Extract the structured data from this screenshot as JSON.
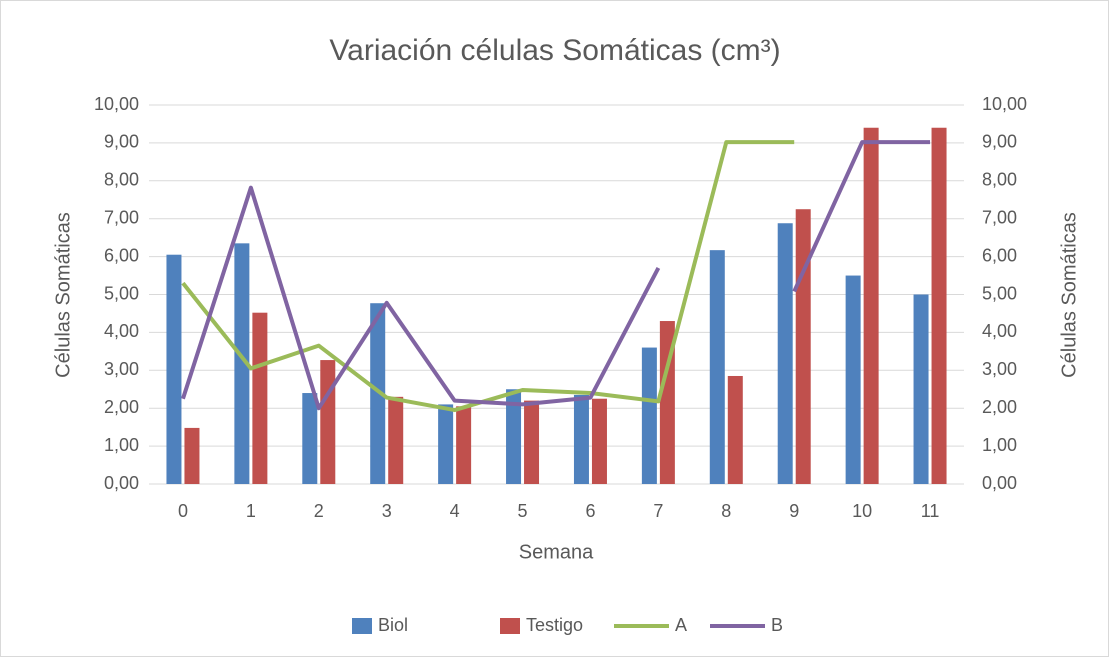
{
  "chart_data": {
    "type": "bar",
    "title": "Variación células Somáticas (cm³)",
    "x_label": "Semana",
    "y_label": "Células Somáticas",
    "y2_label": "Células Somáticas",
    "categories": [
      "0",
      "1",
      "2",
      "3",
      "4",
      "5",
      "6",
      "7",
      "8",
      "9",
      "10",
      "11"
    ],
    "series": [
      {
        "name": "Biol",
        "type": "bar",
        "color": "#4f81bd",
        "values": [
          6.05,
          6.35,
          2.4,
          4.77,
          2.1,
          2.5,
          2.35,
          3.6,
          6.17,
          6.88,
          5.5,
          5.0
        ]
      },
      {
        "name": "Testigo",
        "type": "bar",
        "color": "#c0504d",
        "values": [
          1.48,
          4.52,
          3.27,
          2.3,
          2.05,
          2.2,
          2.25,
          4.3,
          2.85,
          7.25,
          9.4,
          9.4
        ]
      },
      {
        "name": "A",
        "type": "line",
        "axis": "y2",
        "color": "#9bbb59",
        "values": [
          5.3,
          3.05,
          3.65,
          2.28,
          1.95,
          2.48,
          2.4,
          2.18,
          9.02,
          9.02,
          null,
          null
        ]
      },
      {
        "name": "B",
        "type": "line",
        "axis": "y2",
        "color": "#8064a2",
        "values": [
          2.25,
          7.82,
          2.0,
          4.78,
          2.2,
          2.1,
          2.28,
          5.7,
          null,
          5.08,
          9.02,
          9.02
        ]
      }
    ],
    "ylim": [
      0,
      10
    ],
    "yticks": [
      {
        "value": 0,
        "label": "0,00"
      },
      {
        "value": 1,
        "label": "1,00"
      },
      {
        "value": 2,
        "label": "2,00"
      },
      {
        "value": 3,
        "label": "3,00"
      },
      {
        "value": 4,
        "label": "4,00"
      },
      {
        "value": 5,
        "label": "5,00"
      },
      {
        "value": 6,
        "label": "6,00"
      },
      {
        "value": 7,
        "label": "7,00"
      },
      {
        "value": 8,
        "label": "8,00"
      },
      {
        "value": 9,
        "label": "9,00"
      },
      {
        "value": 10,
        "label": "10,00"
      }
    ],
    "y2lim": [
      0,
      10
    ],
    "y2ticks": [
      {
        "value": 0,
        "label": "0,00"
      },
      {
        "value": 1,
        "label": "1,00"
      },
      {
        "value": 2,
        "label": "2,00"
      },
      {
        "value": 3,
        "label": "3,00"
      },
      {
        "value": 4,
        "label": "4,00"
      },
      {
        "value": 5,
        "label": "5,00"
      },
      {
        "value": 6,
        "label": "6,00"
      },
      {
        "value": 7,
        "label": "7,00"
      },
      {
        "value": 8,
        "label": "8,00"
      },
      {
        "value": 9,
        "label": "9,00"
      },
      {
        "value": 10,
        "label": "10,00"
      }
    ],
    "grid": true,
    "legend": "bottom"
  }
}
